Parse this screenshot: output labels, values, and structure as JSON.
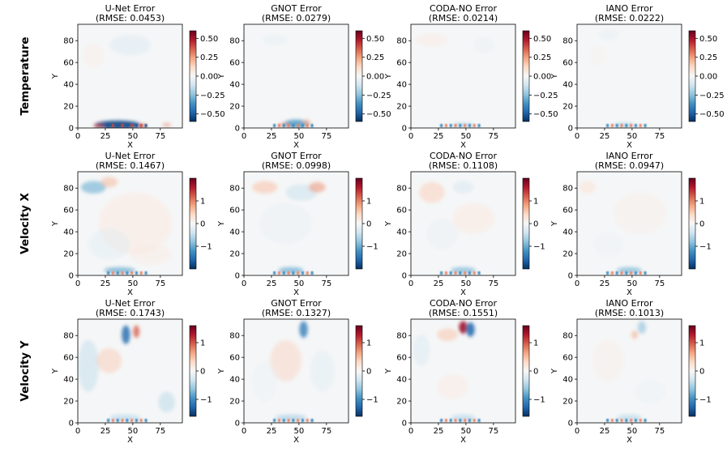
{
  "colors": {
    "negative": "#053061",
    "neutral": "#f7f7f7",
    "positive": "#67001f",
    "colormap": "RdBu_r"
  },
  "chart_data": {
    "type": "heatmap",
    "xlabel": "X",
    "ylabel": "Y",
    "xticks": [
      "0",
      "25",
      "50",
      "75"
    ],
    "yticks": [
      "0",
      "20",
      "40",
      "60",
      "80"
    ],
    "xlim": [
      0,
      95
    ],
    "ylim": [
      0,
      95
    ],
    "rows": [
      {
        "label": "Temperature",
        "colorbar": {
          "range": [
            -0.6,
            0.6
          ],
          "ticks": [
            "0.50",
            "0.25",
            "0.00",
            "−0.25",
            "−0.50"
          ],
          "values": [
            0.5,
            0.25,
            0.0,
            -0.25,
            -0.5
          ]
        },
        "panels": [
          {
            "model": "U-Net Error",
            "rmse": "(RMSE: 0.0453)"
          },
          {
            "model": "GNOT Error",
            "rmse": "(RMSE: 0.0279)"
          },
          {
            "model": "CODA-NO Error",
            "rmse": "(RMSE: 0.0214)"
          },
          {
            "model": "IANO Error",
            "rmse": "(RMSE: 0.0222)"
          }
        ]
      },
      {
        "label": "Velocity X",
        "colorbar": {
          "range": [
            -2,
            2
          ],
          "ticks": [
            "1",
            "0",
            "−1"
          ],
          "values": [
            1,
            0,
            -1
          ]
        },
        "panels": [
          {
            "model": "U-Net Error",
            "rmse": "(RMSE: 0.1467)"
          },
          {
            "model": "GNOT Error",
            "rmse": "(RMSE: 0.0998)"
          },
          {
            "model": "CODA-NO Error",
            "rmse": "(RMSE: 0.1108)"
          },
          {
            "model": "IANO Error",
            "rmse": "(RMSE: 0.0947)"
          }
        ]
      },
      {
        "label": "Velocity Y",
        "colorbar": {
          "range": [
            -1.6,
            1.6
          ],
          "ticks": [
            "1",
            "0",
            "−1"
          ],
          "values": [
            1,
            0,
            -1
          ]
        },
        "panels": [
          {
            "model": "U-Net Error",
            "rmse": "(RMSE: 0.1743)"
          },
          {
            "model": "GNOT Error",
            "rmse": "(RMSE: 0.1327)"
          },
          {
            "model": "CODA-NO Error",
            "rmse": "(RMSE: 0.1551)"
          },
          {
            "model": "IANO Error",
            "rmse": "(RMSE: 0.1013)"
          }
        ]
      }
    ]
  }
}
